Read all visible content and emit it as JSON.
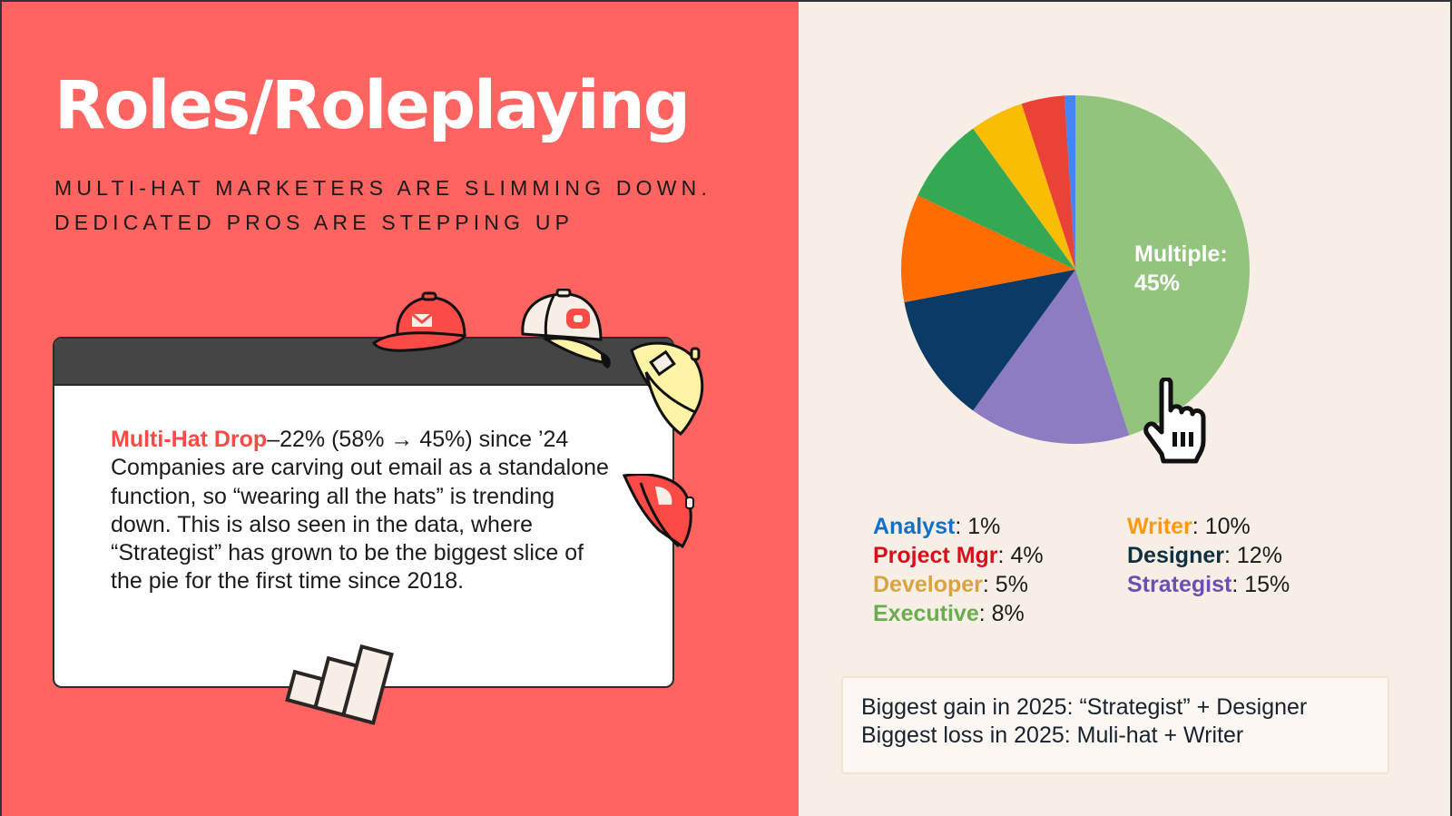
{
  "slide": {
    "title": "Roles/Roleplaying",
    "subtitle_lines": [
      "MULTI-HAT MARKETERS ARE SLIMMING DOWN.",
      "DEDICATED PROS ARE STEPPING UP"
    ],
    "colors": {
      "left_bg": "#ff6461",
      "right_bg": "#f7efe6",
      "highlight": "#fc4a47"
    }
  },
  "callout": {
    "highlight": "Multi-Hat Drop",
    "headline_rest": "–22% (58% → 45%) since ’24",
    "body": "Companies are carving out email as a standalone function, so “wearing all the hats” is trending down. This is also seen in the data, where “Strategist” has grown to be the biggest slice of the pie for the first time since 2018."
  },
  "decorations": {
    "icons": [
      "email-cap-icon",
      "cream-cap-icon",
      "yellow-cap-icon",
      "red-cap-icon",
      "bar-chart-icon",
      "hand-cursor-icon"
    ]
  },
  "chart_data": {
    "type": "pie",
    "title": "",
    "start_angle": "12 o'clock, clockwise",
    "categories": [
      "Multiple",
      "Strategist",
      "Designer",
      "Writer",
      "Executive",
      "Developer",
      "Project Mgr",
      "Analyst"
    ],
    "values": [
      45,
      15,
      12,
      10,
      8,
      5,
      4,
      1
    ],
    "unit": "%",
    "slice_colors": [
      "#93c47d",
      "#8e7cc3",
      "#0b3a66",
      "#ff6d01",
      "#34a853",
      "#fbbc04",
      "#ea4335",
      "#4285f4"
    ],
    "annotations": [
      {
        "slice": "Multiple",
        "text_line1": "Multiple:",
        "text_line2": "45%"
      }
    ],
    "legend": {
      "position": "below",
      "columns": [
        [
          {
            "name": "Analyst",
            "value": "1%",
            "color": "#1170c8"
          },
          {
            "name": "Project Mgr",
            "value": "4%",
            "color": "#d90f1c"
          },
          {
            "name": "Developer",
            "value": "5%",
            "color": "#d9a43e"
          },
          {
            "name": "Executive",
            "value": "8%",
            "color": "#6aac4f"
          }
        ],
        [
          {
            "name": "Writer",
            "value": "10%",
            "color": "#ff9a0f"
          },
          {
            "name": "Designer",
            "value": "12%",
            "color": "#0f3040"
          },
          {
            "name": "Strategist",
            "value": "15%",
            "color": "#6a50b3"
          }
        ]
      ]
    }
  },
  "summary": {
    "gain": "Biggest gain in 2025:  “Strategist” + Designer",
    "loss": "Biggest loss in 2025: Muli-hat + Writer"
  }
}
